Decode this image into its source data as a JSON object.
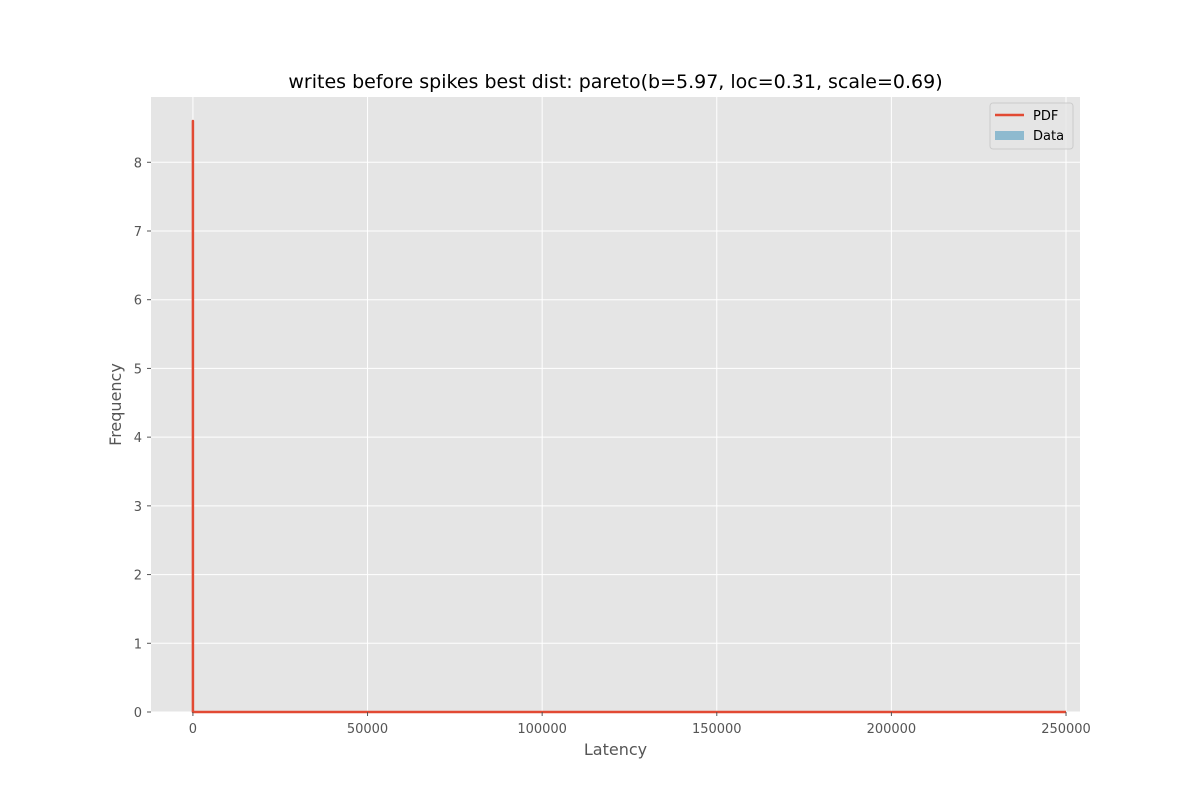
{
  "chart_data": {
    "type": "line",
    "title": "writes before spikes best dist: pareto(b=5.97, loc=0.31, scale=0.69)",
    "xlabel": "Latency",
    "ylabel": "Frequency",
    "xlim": [
      -12000,
      254000
    ],
    "ylim": [
      0,
      8.95
    ],
    "xticks": [
      0,
      50000,
      100000,
      150000,
      200000,
      250000
    ],
    "xtick_labels": [
      "0",
      "50000",
      "100000",
      "150000",
      "200000",
      "250000"
    ],
    "yticks": [
      0,
      1,
      2,
      3,
      4,
      5,
      6,
      7,
      8
    ],
    "ytick_labels": [
      "0",
      "1",
      "2",
      "3",
      "4",
      "5",
      "6",
      "7",
      "8"
    ],
    "grid": true,
    "legend_position": "top-right",
    "series": [
      {
        "name": "PDF",
        "kind": "line",
        "color": "#E24A33",
        "x": [
          1.0,
          1.0,
          1.2,
          1.5,
          2,
          3,
          5,
          10,
          100,
          1000,
          10000,
          100000,
          250000
        ],
        "y": [
          0,
          8.6,
          2.5,
          0.6,
          0.15,
          0.03,
          0.005,
          0.0005,
          0,
          0,
          0,
          0,
          0
        ]
      },
      {
        "name": "Data",
        "kind": "histogram",
        "color": "#8EBACF",
        "values": []
      }
    ],
    "style": {
      "plot_background": "#E5E5E5",
      "grid_color": "#FFFFFF"
    }
  }
}
